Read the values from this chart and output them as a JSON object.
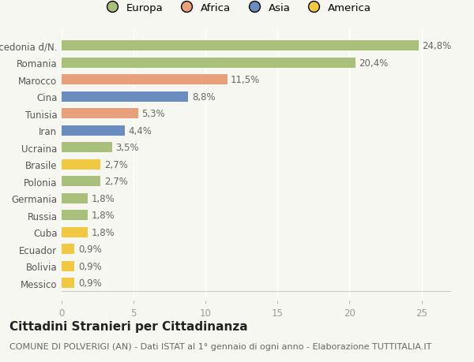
{
  "categories": [
    "Messico",
    "Bolivia",
    "Ecuador",
    "Cuba",
    "Russia",
    "Germania",
    "Polonia",
    "Brasile",
    "Ucraina",
    "Iran",
    "Tunisia",
    "Cina",
    "Marocco",
    "Romania",
    "Macedonia d/N."
  ],
  "values": [
    0.9,
    0.9,
    0.9,
    1.8,
    1.8,
    1.8,
    2.7,
    2.7,
    3.5,
    4.4,
    5.3,
    8.8,
    11.5,
    20.4,
    24.8
  ],
  "labels": [
    "0,9%",
    "0,9%",
    "0,9%",
    "1,8%",
    "1,8%",
    "1,8%",
    "2,7%",
    "2,7%",
    "3,5%",
    "4,4%",
    "5,3%",
    "8,8%",
    "11,5%",
    "20,4%",
    "24,8%"
  ],
  "colors": [
    "#f0c842",
    "#f0c842",
    "#f0c842",
    "#f0c842",
    "#a8c07a",
    "#a8c07a",
    "#a8c07a",
    "#f0c842",
    "#a8c07a",
    "#6b8cbf",
    "#e8a07a",
    "#6b8cbf",
    "#e8a07a",
    "#a8c07a",
    "#a8c07a"
  ],
  "legend_labels": [
    "Europa",
    "Africa",
    "Asia",
    "America"
  ],
  "legend_colors": [
    "#a8c07a",
    "#e8a07a",
    "#6b8cbf",
    "#f0c842"
  ],
  "title": "Cittadini Stranieri per Cittadinanza",
  "subtitle": "COMUNE DI POLVERIGI (AN) - Dati ISTAT al 1° gennaio di ogni anno - Elaborazione TUTTITALIA.IT",
  "xlim": [
    0,
    27
  ],
  "xticks": [
    0,
    5,
    10,
    15,
    20,
    25
  ],
  "bg_color": "#f7f7f2",
  "bar_height": 0.6,
  "title_fontsize": 11,
  "subtitle_fontsize": 8,
  "label_fontsize": 8.5,
  "tick_fontsize": 8.5,
  "legend_fontsize": 9.5
}
